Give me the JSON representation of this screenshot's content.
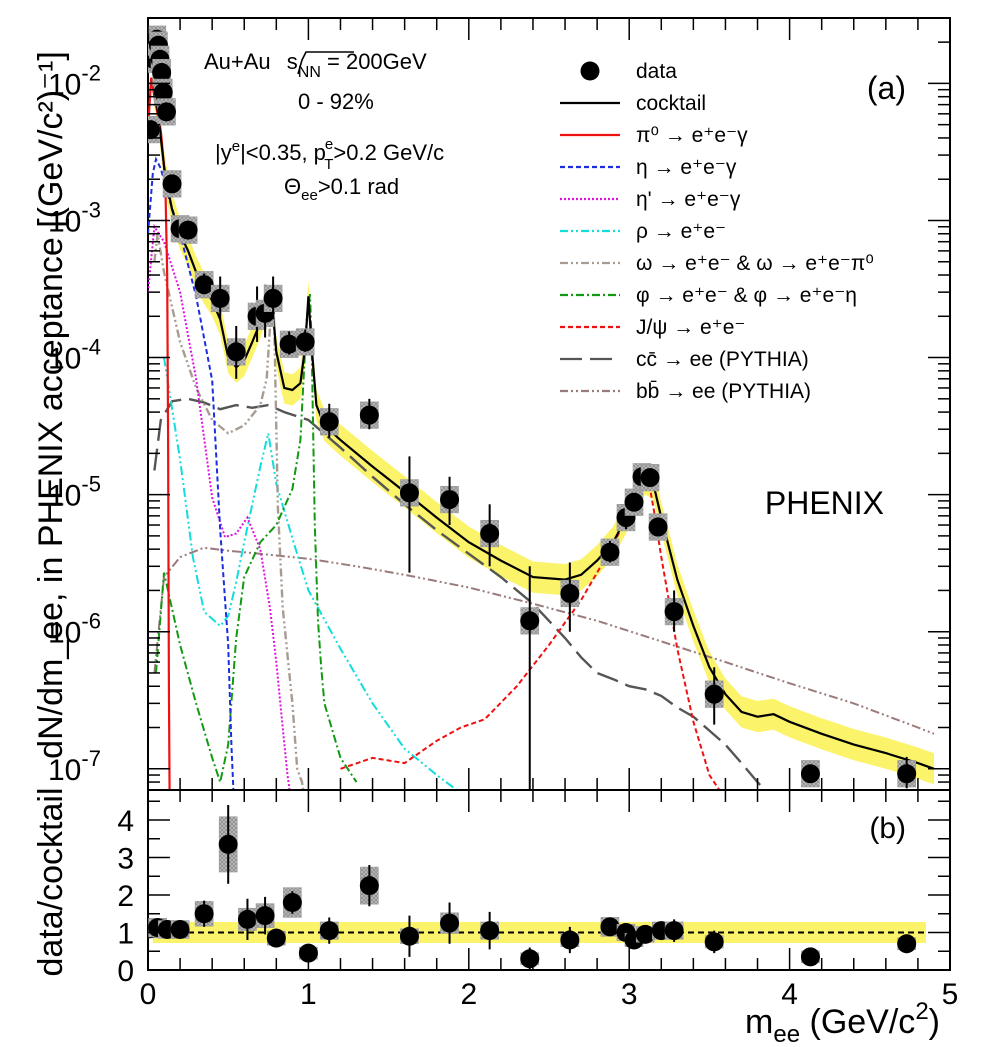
{
  "chart_data": [
    {
      "panel": "a",
      "type": "line",
      "panel_label": "(a)",
      "experiment": "PHENIX",
      "ylabel": "dN/dm_ee, in PHENIX acceptance [(GeV/c²)⁻¹]",
      "xlim": [
        0,
        5
      ],
      "ylim": [
        7e-08,
        0.03
      ],
      "yscale": "log",
      "y_ticks": [
        {
          "value": 1e-07,
          "label": "10",
          "exp": "-7"
        },
        {
          "value": 1e-06,
          "label": "10",
          "exp": "-6"
        },
        {
          "value": 1e-05,
          "label": "10",
          "exp": "-5"
        },
        {
          "value": 0.0001,
          "label": "10",
          "exp": "-4"
        },
        {
          "value": 0.001,
          "label": "10",
          "exp": "-3"
        },
        {
          "value": 0.01,
          "label": "10",
          "exp": "-2"
        }
      ],
      "annotations": {
        "system_a": "Au+Au ",
        "system_b": "s",
        "system_sub": "NN",
        "system_c": " = 200GeV",
        "centrality": "0 - 92%",
        "cut_a": "|y",
        "cut_a_sup": "e",
        "cut_b": "|<0.35, p",
        "cut_b_sup": "e",
        "cut_b_sub": "T",
        "cut_c": ">0.2 GeV/c",
        "theta_a": "Θ",
        "theta_sub": "ee",
        "theta_b": ">0.1 rad"
      },
      "legend_position": "top-right",
      "legend": [
        {
          "label": "data",
          "style": "marker",
          "color": "#000000"
        },
        {
          "label": "cocktail",
          "style": "solid",
          "color": "#000000"
        },
        {
          "label": "π⁰ → e⁺e⁻γ",
          "style": "solid",
          "color": "#ee1111"
        },
        {
          "label": "η → e⁺e⁻γ",
          "style": "dash",
          "color": "#1b2ee0"
        },
        {
          "label": "η' → e⁺e⁻γ",
          "style": "dot",
          "color": "#e011e0"
        },
        {
          "label": "ρ → e⁺e⁻",
          "style": "dashdotdot",
          "color": "#11dddd"
        },
        {
          "label": "ω → e⁺e⁻ & ω → e⁺e⁻π⁰",
          "style": "dashdotdot",
          "color": "#a89c92"
        },
        {
          "label": "φ → e⁺e⁻ & φ → e⁺e⁻η",
          "style": "dashdot",
          "color": "#119911"
        },
        {
          "label": "J/ψ → e⁺e⁻",
          "style": "dash",
          "color": "#ee1111"
        },
        {
          "label": "cc̄ → ee (PYTHIA)",
          "style": "longdash",
          "color": "#555555"
        },
        {
          "label": "bb̄ → ee (PYTHIA)",
          "style": "dashdotdot",
          "color": "#9a7a7a"
        }
      ],
      "data_points": [
        {
          "x": 0.015,
          "y": 0.0046,
          "err_lo": 0,
          "err_hi": 0
        },
        {
          "x": 0.035,
          "y": 0.015,
          "err_lo": 0,
          "err_hi": 0
        },
        {
          "x": 0.045,
          "y": 0.02,
          "err_lo": 0,
          "err_hi": 0
        },
        {
          "x": 0.055,
          "y": 0.021,
          "err_lo": 0,
          "err_hi": 0
        },
        {
          "x": 0.065,
          "y": 0.019,
          "err_lo": 0,
          "err_hi": 0
        },
        {
          "x": 0.075,
          "y": 0.015,
          "err_lo": 0,
          "err_hi": 0
        },
        {
          "x": 0.085,
          "y": 0.012,
          "err_lo": 0,
          "err_hi": 0
        },
        {
          "x": 0.095,
          "y": 0.0086,
          "err_lo": 0,
          "err_hi": 0
        },
        {
          "x": 0.115,
          "y": 0.0062,
          "err_lo": 0,
          "err_hi": 0
        },
        {
          "x": 0.15,
          "y": 0.00185,
          "err_lo": 0,
          "err_hi": 0
        },
        {
          "x": 0.2,
          "y": 0.00087,
          "err_lo": 0,
          "err_hi": 0
        },
        {
          "x": 0.25,
          "y": 0.00085,
          "err_lo": 0,
          "err_hi": 0
        },
        {
          "x": 0.35,
          "y": 0.00034,
          "err_lo": 5e-05,
          "err_hi": 7e-05
        },
        {
          "x": 0.45,
          "y": 0.00027,
          "err_lo": 8e-05,
          "err_hi": 0.00012
        },
        {
          "x": 0.55,
          "y": 0.00011,
          "err_lo": 4e-05,
          "err_hi": 6e-05
        },
        {
          "x": 0.68,
          "y": 0.0002,
          "err_lo": 7e-05,
          "err_hi": 0.00013
        },
        {
          "x": 0.73,
          "y": 0.00021,
          "err_lo": 7e-05,
          "err_hi": 0.00013
        },
        {
          "x": 0.78,
          "y": 0.00027,
          "err_lo": 8e-05,
          "err_hi": 0.00012
        },
        {
          "x": 0.88,
          "y": 0.000125,
          "err_lo": 2e-05,
          "err_hi": 3e-05
        },
        {
          "x": 0.98,
          "y": 0.00013,
          "err_lo": 2e-05,
          "err_hi": 3e-05
        },
        {
          "x": 1.13,
          "y": 3.4e-05,
          "err_lo": 8e-06,
          "err_hi": 1.2e-05
        },
        {
          "x": 1.38,
          "y": 3.8e-05,
          "err_lo": 8e-06,
          "err_hi": 1.2e-05
        },
        {
          "x": 1.63,
          "y": 1.03e-05,
          "err_lo": 7.6e-06,
          "err_hi": 8.7e-06
        },
        {
          "x": 1.88,
          "y": 9.2e-06,
          "err_lo": 3.2e-06,
          "err_hi": 4.3e-06
        },
        {
          "x": 2.13,
          "y": 5.2e-06,
          "err_lo": 2.2e-06,
          "err_hi": 3.3e-06
        },
        {
          "x": 2.38,
          "y": 1.2e-06,
          "err_lo": 1.13e-06,
          "err_hi": 1.8e-06
        },
        {
          "x": 2.63,
          "y": 1.9e-06,
          "err_lo": 9e-07,
          "err_hi": 1.3e-06
        },
        {
          "x": 2.88,
          "y": 3.8e-06,
          "err_lo": 6e-07,
          "err_hi": 8e-07
        },
        {
          "x": 2.98,
          "y": 6.8e-06,
          "err_lo": 1.2e-06,
          "err_hi": 1.5e-06
        },
        {
          "x": 3.03,
          "y": 8.8e-06,
          "err_lo": 1e-06,
          "err_hi": 1.3e-06
        },
        {
          "x": 3.08,
          "y": 1.35e-05,
          "err_lo": 1.2e-06,
          "err_hi": 1.5e-06
        },
        {
          "x": 3.13,
          "y": 1.33e-05,
          "err_lo": 1.2e-06,
          "err_hi": 1.5e-06
        },
        {
          "x": 3.18,
          "y": 5.8e-06,
          "err_lo": 8e-07,
          "err_hi": 1e-06
        },
        {
          "x": 3.28,
          "y": 1.4e-06,
          "err_lo": 4e-07,
          "err_hi": 6e-07
        },
        {
          "x": 3.53,
          "y": 3.5e-07,
          "err_lo": 1.4e-07,
          "err_hi": 2e-07
        },
        {
          "x": 4.13,
          "y": 9.2e-08,
          "err_lo": 0,
          "err_hi": 0
        },
        {
          "x": 4.73,
          "y": 9.2e-08,
          "err_lo": 2e-08,
          "err_hi": 3e-08
        }
      ],
      "series": [
        {
          "id": "cocktail",
          "x": [
            0.04,
            0.06,
            0.08,
            0.1,
            0.12,
            0.15,
            0.2,
            0.25,
            0.3,
            0.35,
            0.4,
            0.45,
            0.5,
            0.55,
            0.6,
            0.65,
            0.7,
            0.73,
            0.76,
            0.78,
            0.8,
            0.85,
            0.9,
            0.95,
            0.98,
            1.0,
            1.02,
            1.05,
            1.1,
            1.2,
            1.4,
            1.6,
            1.8,
            2.0,
            2.2,
            2.4,
            2.6,
            2.7,
            2.8,
            2.9,
            3.0,
            3.05,
            3.1,
            3.15,
            3.2,
            3.3,
            3.4,
            3.5,
            3.6,
            3.7,
            3.8,
            3.9,
            4.0,
            4.2,
            4.4,
            4.6,
            4.8,
            4.9
          ],
          "y": [
            0.0085,
            0.0065,
            0.004,
            0.0025,
            0.0018,
            0.0012,
            0.0008,
            0.0006,
            0.00042,
            0.00032,
            0.00026,
            0.00019,
            0.0001,
            8.5e-05,
            9.5e-05,
            0.00013,
            0.00018,
            0.00023,
            0.00025,
            0.00021,
            0.00011,
            6e-05,
            5.8e-05,
            6.5e-05,
            0.00012,
            0.00028,
            0.00012,
            4.5e-05,
            3.2e-05,
            2.5e-05,
            1.6e-05,
            1.05e-05,
            6.8e-06,
            4.5e-06,
            3.3e-06,
            2.5e-06,
            2.4e-06,
            2.6e-06,
            3.3e-06,
            4.5e-06,
            7.5e-06,
            1.05e-05,
            1.3e-05,
            1.2e-05,
            6.8e-06,
            2.4e-06,
            1.1e-06,
            5.5e-07,
            3.5e-07,
            2.6e-07,
            2.4e-07,
            2.5e-07,
            2.2e-07,
            1.8e-07,
            1.5e-07,
            1.3e-07,
            1.1e-07,
            1e-07
          ]
        },
        {
          "id": "pi0",
          "x": [
            0.0,
            0.02,
            0.04,
            0.06,
            0.08,
            0.1,
            0.11,
            0.12,
            0.125,
            0.13,
            0.135
          ],
          "y": [
            0.0046,
            0.011,
            0.008,
            0.006,
            0.0045,
            0.0025,
            0.0015,
            0.0004,
            2.5e-05,
            4e-07,
            5e-08
          ]
        },
        {
          "id": "eta",
          "x": [
            0.0,
            0.03,
            0.05,
            0.08,
            0.12,
            0.2,
            0.3,
            0.4,
            0.45,
            0.5,
            0.52,
            0.535,
            0.54
          ],
          "y": [
            0.0008,
            0.0022,
            0.0028,
            0.0024,
            0.0016,
            0.0008,
            0.00028,
            6.8e-05,
            5.5e-06,
            8e-07,
            1.5e-07,
            6e-08,
            4e-08
          ]
        },
        {
          "id": "etap",
          "x": [
            0.0,
            0.04,
            0.1,
            0.2,
            0.3,
            0.4,
            0.48,
            0.55,
            0.62,
            0.7,
            0.76,
            0.8,
            0.84,
            0.87,
            0.89,
            0.9
          ],
          "y": [
            0.0003,
            0.0009,
            0.0007,
            0.0003,
            7e-05,
            9.5e-06,
            4.9e-06,
            5.2e-06,
            6.8e-06,
            4e-06,
            1.5e-06,
            6e-07,
            2e-07,
            9e-08,
            6e-08,
            4e-08
          ]
        },
        {
          "id": "rho",
          "x": [
            0.1,
            0.2,
            0.28,
            0.35,
            0.45,
            0.5,
            0.55,
            0.6,
            0.65,
            0.7,
            0.75,
            0.8,
            0.9,
            1.0,
            1.2,
            1.4,
            1.6,
            1.8,
            2.0
          ],
          "y": [
            0.0001,
            1.8e-05,
            3.5e-06,
            1.4e-06,
            1.1e-06,
            1.3e-06,
            2.3e-06,
            4.5e-06,
            8.5e-06,
            1.6e-05,
            2.8e-05,
            1.2e-05,
            4.8e-06,
            2e-06,
            7.5e-07,
            3e-07,
            1.4e-07,
            9e-08,
            6e-08
          ]
        },
        {
          "id": "omega",
          "x": [
            0.04,
            0.06,
            0.1,
            0.2,
            0.3,
            0.4,
            0.5,
            0.6,
            0.7,
            0.74,
            0.77,
            0.78,
            0.79,
            0.81,
            0.84,
            0.9,
            0.93,
            0.96,
            1.0
          ],
          "y": [
            0.0005,
            0.0008,
            0.00042,
            0.00013,
            6e-05,
            3.5e-05,
            2.8e-05,
            3.2e-05,
            4.5e-05,
            7e-05,
            0.00025,
            0.00034,
            0.00012,
            8e-06,
            1.5e-06,
            3e-07,
            1e-07,
            8e-08,
            4e-08
          ]
        },
        {
          "id": "phi",
          "x": [
            0.05,
            0.1,
            0.2,
            0.3,
            0.4,
            0.45,
            0.5,
            0.55,
            0.6,
            0.7,
            0.8,
            0.9,
            0.95,
            0.99,
            1.01,
            1.02,
            1.04,
            1.06,
            1.08,
            1.1,
            1.2,
            1.3
          ],
          "y": [
            5e-07,
            2.7e-06,
            8e-07,
            3e-07,
            1.2e-07,
            8e-08,
            1.5e-07,
            9e-07,
            2.5e-06,
            4.5e-06,
            6e-06,
            1.1e-05,
            2.5e-05,
            0.0002,
            0.00029,
            0.00013,
            6e-06,
            1.2e-06,
            5.5e-07,
            3e-07,
            1.2e-07,
            8e-08
          ]
        },
        {
          "id": "jpsi",
          "x": [
            1.2,
            1.4,
            1.6,
            1.8,
            1.95,
            2.1,
            2.3,
            2.5,
            2.7,
            2.8,
            2.9,
            3.0,
            3.05,
            3.1,
            3.13,
            3.16,
            3.2,
            3.3,
            3.4,
            3.5,
            3.6
          ],
          "y": [
            1e-07,
            1.2e-07,
            1.1e-07,
            1.6e-07,
            2e-07,
            2.3e-07,
            4e-07,
            8e-07,
            1.7e-06,
            2.7e-06,
            4.3e-06,
            7.5e-06,
            1.05e-05,
            1.3e-05,
            1.1e-05,
            7e-06,
            3.5e-06,
            7.5e-07,
            2.2e-07,
            9e-08,
            6e-08
          ]
        },
        {
          "id": "ccbar",
          "x": [
            0.04,
            0.08,
            0.15,
            0.25,
            0.35,
            0.45,
            0.55,
            0.65,
            0.75,
            0.85,
            1.0,
            1.2,
            1.4,
            1.6,
            1.8,
            2.0,
            2.2,
            2.4,
            2.6,
            2.7,
            2.8,
            2.9,
            3.0,
            3.1,
            3.2,
            3.3,
            3.4,
            3.5,
            3.6,
            3.7,
            3.8,
            3.9
          ],
          "y": [
            1.5e-05,
            3.5e-05,
            4.8e-05,
            5e-05,
            4.7e-05,
            4.2e-05,
            4.5e-05,
            4.3e-05,
            4.5e-05,
            4e-05,
            3.5e-05,
            2.2e-05,
            1.35e-05,
            8.5e-06,
            5.5e-06,
            3.7e-06,
            2.5e-06,
            1.6e-06,
            9e-07,
            6.5e-07,
            5e-07,
            4.5e-07,
            4e-07,
            3.8e-07,
            3.4e-07,
            2.8e-07,
            2.4e-07,
            1.9e-07,
            1.5e-07,
            1.1e-07,
            8e-08,
            6e-08
          ]
        },
        {
          "id": "bbbar",
          "x": [
            0.04,
            0.1,
            0.2,
            0.35,
            0.5,
            0.7,
            1.0,
            1.3,
            1.6,
            2.0,
            2.4,
            2.8,
            3.2,
            3.6,
            4.0,
            4.4,
            4.8,
            4.9
          ],
          "y": [
            5e-07,
            2.5e-06,
            3.5e-06,
            4.1e-06,
            3.9e-06,
            3.7e-06,
            3.4e-06,
            3e-06,
            2.6e-06,
            2.1e-06,
            1.6e-06,
            1.2e-06,
            8.5e-07,
            6e-07,
            4.2e-07,
            3e-07,
            2e-07,
            1.8e-07
          ]
        }
      ]
    },
    {
      "panel": "b",
      "type": "scatter",
      "panel_label": "(b)",
      "ylabel": "data/cocktail",
      "xlabel_a": "m",
      "xlabel_sub": "ee",
      "xlabel_b": " (GeV/c",
      "xlabel_sup": "2",
      "xlabel_c": ")",
      "xlim": [
        0,
        5
      ],
      "ylim": [
        0,
        4.8
      ],
      "x_ticks": [
        "0",
        "1",
        "2",
        "3",
        "4",
        "5"
      ],
      "y_ticks": [
        "0",
        "1",
        "2",
        "3",
        "4"
      ],
      "reference_line": 1,
      "ratio_points": [
        {
          "x": 0.015,
          "y": 1.1,
          "err": 0
        },
        {
          "x": 0.06,
          "y": 1.13,
          "err": 0
        },
        {
          "x": 0.12,
          "y": 1.08,
          "err": 0
        },
        {
          "x": 0.2,
          "y": 1.08,
          "err": 0
        },
        {
          "x": 0.35,
          "y": 1.5,
          "err": 0.35
        },
        {
          "x": 0.5,
          "y": 3.35,
          "err": 1.05
        },
        {
          "x": 0.62,
          "y": 1.35,
          "err": 0.55
        },
        {
          "x": 0.73,
          "y": 1.45,
          "err": 0.5
        },
        {
          "x": 0.8,
          "y": 0.85,
          "err": 0.25
        },
        {
          "x": 0.9,
          "y": 1.8,
          "err": 0.3
        },
        {
          "x": 1.0,
          "y": 0.45,
          "err": 0.1
        },
        {
          "x": 1.13,
          "y": 1.05,
          "err": 0.35
        },
        {
          "x": 1.38,
          "y": 2.25,
          "err": 0.55
        },
        {
          "x": 1.63,
          "y": 0.9,
          "err": 0.55
        },
        {
          "x": 1.88,
          "y": 1.25,
          "err": 0.55
        },
        {
          "x": 2.13,
          "y": 1.05,
          "err": 0.5
        },
        {
          "x": 2.38,
          "y": 0.3,
          "err": 0.3
        },
        {
          "x": 2.63,
          "y": 0.8,
          "err": 0.35
        },
        {
          "x": 2.88,
          "y": 1.15,
          "err": 0.2
        },
        {
          "x": 2.98,
          "y": 1.0,
          "err": 0.2
        },
        {
          "x": 3.03,
          "y": 0.8,
          "err": 0.2
        },
        {
          "x": 3.1,
          "y": 0.95,
          "err": 0.12
        },
        {
          "x": 3.2,
          "y": 1.05,
          "err": 0.15
        },
        {
          "x": 3.28,
          "y": 1.05,
          "err": 0.3
        },
        {
          "x": 3.53,
          "y": 0.75,
          "err": 0.3
        },
        {
          "x": 4.13,
          "y": 0.35,
          "err": 0
        },
        {
          "x": 4.73,
          "y": 0.7,
          "err": 0.25
        }
      ]
    }
  ]
}
